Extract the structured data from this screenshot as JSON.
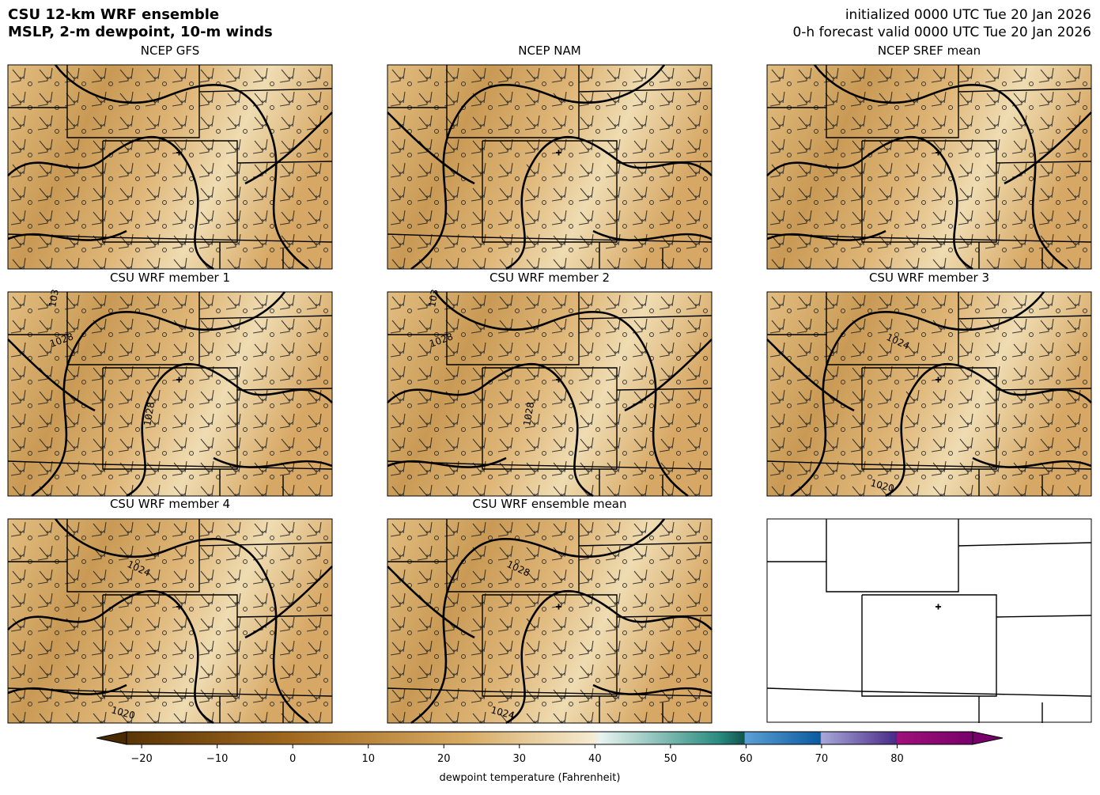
{
  "header": {
    "title_lines": [
      "CSU 12-km WRF ensemble",
      "MSLP, 2-m dewpoint, 10-m winds"
    ],
    "info_lines": [
      "initialized 0000 UTC Tue 20 Jan 2026",
      "0-h forecast valid 0000 UTC Tue 20 Jan 2026"
    ]
  },
  "panels": [
    {
      "title": "NCEP GFS",
      "contour_labels": []
    },
    {
      "title": "NCEP NAM",
      "contour_labels": []
    },
    {
      "title": "NCEP SREF mean",
      "contour_labels": []
    },
    {
      "title": "CSU WRF member 1",
      "contour_labels": [
        "103",
        "1028",
        "1028"
      ]
    },
    {
      "title": "CSU WRF member 2",
      "contour_labels": [
        "103",
        "1028",
        "1028"
      ]
    },
    {
      "title": "CSU WRF member 3",
      "contour_labels": [
        "1024",
        "1020"
      ]
    },
    {
      "title": "CSU WRF member 4",
      "contour_labels": [
        "1024",
        "1020"
      ]
    },
    {
      "title": "CSU WRF ensemble mean",
      "contour_labels": [
        "1028",
        "1024"
      ]
    }
  ],
  "colorbar": {
    "label": "dewpoint temperature (Fahrenheit)",
    "lim": [
      -22,
      90
    ],
    "ticks": [
      {
        "value": -20,
        "label": "−20"
      },
      {
        "value": -10,
        "label": "−10"
      },
      0,
      10,
      20,
      30,
      40,
      50,
      60,
      70,
      80
    ]
  }
}
